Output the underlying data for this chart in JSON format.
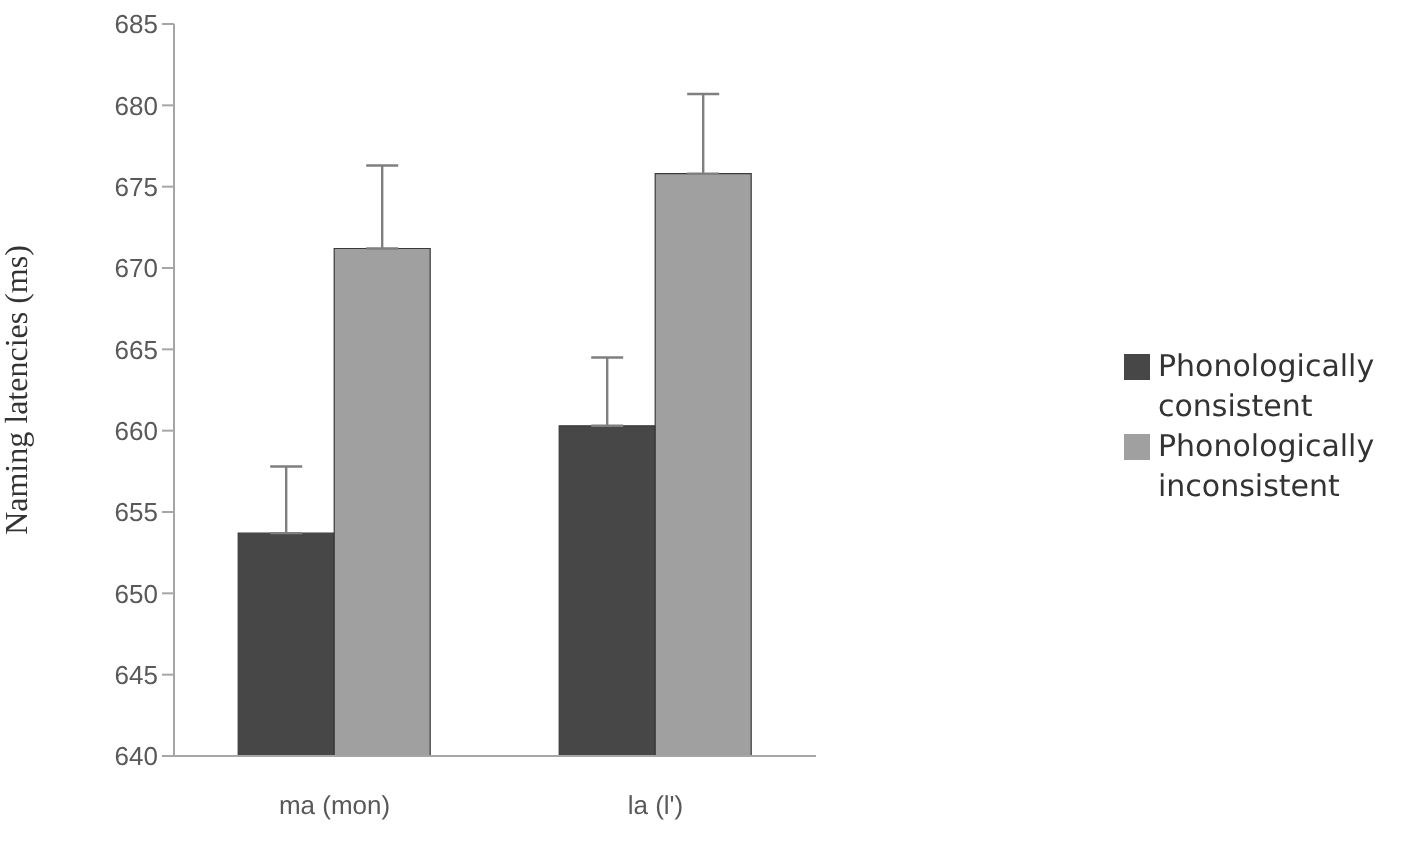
{
  "chart_data": {
    "type": "bar",
    "ylabel": "Naming latencies (ms)",
    "categories": [
      "ma (mon)",
      "la (l')"
    ],
    "series": [
      {
        "name": "Phonologically consistent",
        "color": "#474747",
        "values": [
          653.7,
          660.3
        ],
        "errors": [
          [
            653.7,
            657.8
          ],
          [
            660.3,
            664.5
          ]
        ]
      },
      {
        "name": "Phonologically inconsistent",
        "color": "#a0a0a0",
        "values": [
          671.2,
          675.8
        ],
        "errors": [
          [
            671.2,
            676.3
          ],
          [
            675.8,
            680.7
          ]
        ]
      }
    ],
    "ylim": [
      640,
      685
    ],
    "yticks": [
      640,
      645,
      650,
      655,
      660,
      665,
      670,
      675,
      680,
      685
    ],
    "grid": false,
    "legend": "right"
  }
}
